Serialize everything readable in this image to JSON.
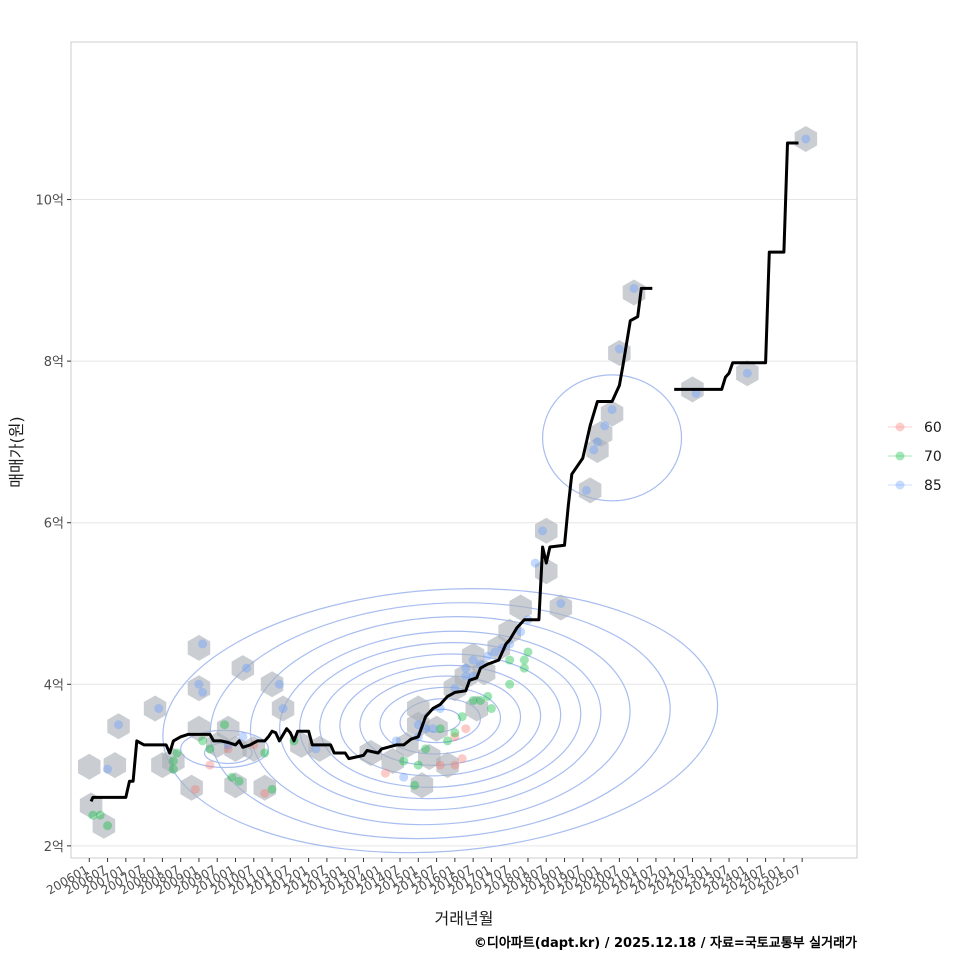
{
  "chart_data": {
    "type": "line",
    "xlabel": "거래년월",
    "ylabel": "매매가(원)",
    "caption": "©디아파트(dapt.kr) / 2025.12.18 / 자료=국토교통부 실거래가",
    "x_range": [
      2005.5,
      2027.0
    ],
    "ylim": [
      1.85,
      11.95
    ],
    "y_ticks": [
      {
        "value": 2,
        "label": "2억"
      },
      {
        "value": 4,
        "label": "4억"
      },
      {
        "value": 6,
        "label": "6억"
      },
      {
        "value": 8,
        "label": "8억"
      },
      {
        "value": 10,
        "label": "10억"
      }
    ],
    "x_ticks": [
      {
        "value": 2006.0,
        "label": "200601"
      },
      {
        "value": 2006.5,
        "label": "200607"
      },
      {
        "value": 2007.0,
        "label": "200701"
      },
      {
        "value": 2007.5,
        "label": "200707"
      },
      {
        "value": 2008.0,
        "label": "200801"
      },
      {
        "value": 2008.5,
        "label": "200807"
      },
      {
        "value": 2009.0,
        "label": "200901"
      },
      {
        "value": 2009.5,
        "label": "200907"
      },
      {
        "value": 2010.0,
        "label": "201001"
      },
      {
        "value": 2010.5,
        "label": "201007"
      },
      {
        "value": 2011.0,
        "label": "201101"
      },
      {
        "value": 2011.5,
        "label": "201107"
      },
      {
        "value": 2012.0,
        "label": "201201"
      },
      {
        "value": 2012.5,
        "label": "201207"
      },
      {
        "value": 2013.0,
        "label": "201301"
      },
      {
        "value": 2013.5,
        "label": "201307"
      },
      {
        "value": 2014.0,
        "label": "201401"
      },
      {
        "value": 2014.5,
        "label": "201407"
      },
      {
        "value": 2015.0,
        "label": "201501"
      },
      {
        "value": 2015.5,
        "label": "201507"
      },
      {
        "value": 2016.0,
        "label": "201601"
      },
      {
        "value": 2016.5,
        "label": "201607"
      },
      {
        "value": 2017.0,
        "label": "201701"
      },
      {
        "value": 2017.5,
        "label": "201707"
      },
      {
        "value": 2018.0,
        "label": "201801"
      },
      {
        "value": 2018.5,
        "label": "201807"
      },
      {
        "value": 2019.0,
        "label": "201901"
      },
      {
        "value": 2019.5,
        "label": "201907"
      },
      {
        "value": 2020.0,
        "label": "202001"
      },
      {
        "value": 2020.5,
        "label": "202007"
      },
      {
        "value": 2021.0,
        "label": "202101"
      },
      {
        "value": 2021.5,
        "label": "202107"
      },
      {
        "value": 2022.0,
        "label": "202201"
      },
      {
        "value": 2022.5,
        "label": "202207"
      },
      {
        "value": 2023.0,
        "label": "202301"
      },
      {
        "value": 2023.5,
        "label": "202307"
      },
      {
        "value": 2024.0,
        "label": "202401"
      },
      {
        "value": 2024.5,
        "label": "202407"
      },
      {
        "value": 2025.0,
        "label": "202501"
      },
      {
        "value": 2025.5,
        "label": "202507"
      }
    ],
    "legend": {
      "position": "right",
      "entries": [
        {
          "label": "60",
          "color": "#f8766d"
        },
        {
          "label": "70",
          "color": "#00ba38"
        },
        {
          "label": "85",
          "color": "#619cff"
        }
      ]
    },
    "colors": {
      "line": "#000000",
      "hex": "#a9b0b8",
      "contour": "#a8bdf0",
      "grid": "#e6e6e6",
      "border": "#cccccc"
    },
    "series": [
      {
        "name": "median price",
        "segments": [
          [
            [
              2006.05,
              2.55
            ],
            [
              2006.1,
              2.6
            ],
            [
              2006.4,
              2.6
            ],
            [
              2007.0,
              2.6
            ],
            [
              2007.1,
              2.8
            ],
            [
              2007.2,
              2.8
            ],
            [
              2007.3,
              3.3
            ],
            [
              2007.5,
              3.25
            ],
            [
              2008.1,
              3.25
            ],
            [
              2008.2,
              3.15
            ],
            [
              2008.3,
              3.3
            ],
            [
              2008.5,
              3.35
            ],
            [
              2008.7,
              3.38
            ],
            [
              2009.3,
              3.38
            ],
            [
              2009.4,
              3.3
            ],
            [
              2009.6,
              3.3
            ],
            [
              2009.8,
              3.28
            ],
            [
              2010.0,
              3.25
            ],
            [
              2010.1,
              3.3
            ],
            [
              2010.2,
              3.22
            ],
            [
              2010.4,
              3.25
            ],
            [
              2010.6,
              3.3
            ],
            [
              2010.8,
              3.3
            ],
            [
              2010.9,
              3.35
            ],
            [
              2011.0,
              3.42
            ],
            [
              2011.1,
              3.4
            ],
            [
              2011.2,
              3.3
            ],
            [
              2011.4,
              3.45
            ],
            [
              2011.5,
              3.4
            ],
            [
              2011.6,
              3.3
            ],
            [
              2011.7,
              3.42
            ],
            [
              2012.0,
              3.42
            ],
            [
              2012.1,
              3.25
            ],
            [
              2012.6,
              3.25
            ],
            [
              2012.7,
              3.15
            ],
            [
              2013.0,
              3.15
            ],
            [
              2013.1,
              3.08
            ],
            [
              2013.5,
              3.12
            ],
            [
              2013.6,
              3.18
            ],
            [
              2013.9,
              3.15
            ],
            [
              2014.0,
              3.2
            ],
            [
              2014.4,
              3.25
            ],
            [
              2014.6,
              3.25
            ],
            [
              2014.8,
              3.32
            ],
            [
              2015.0,
              3.35
            ],
            [
              2015.2,
              3.6
            ],
            [
              2015.4,
              3.7
            ],
            [
              2015.6,
              3.75
            ],
            [
              2015.8,
              3.85
            ],
            [
              2016.0,
              3.9
            ],
            [
              2016.3,
              3.92
            ],
            [
              2016.4,
              4.05
            ],
            [
              2016.6,
              4.08
            ],
            [
              2016.7,
              4.2
            ],
            [
              2016.9,
              4.25
            ],
            [
              2017.2,
              4.3
            ],
            [
              2017.4,
              4.5
            ],
            [
              2017.5,
              4.55
            ],
            [
              2017.7,
              4.7
            ],
            [
              2017.9,
              4.8
            ],
            [
              2018.3,
              4.8
            ],
            [
              2018.4,
              5.7
            ],
            [
              2018.5,
              5.5
            ],
            [
              2018.6,
              5.7
            ],
            [
              2019.0,
              5.72
            ],
            [
              2019.1,
              6.2
            ],
            [
              2019.2,
              6.6
            ],
            [
              2019.5,
              6.8
            ],
            [
              2019.7,
              7.2
            ],
            [
              2019.9,
              7.5
            ],
            [
              2020.3,
              7.5
            ],
            [
              2020.5,
              7.7
            ],
            [
              2020.6,
              7.95
            ],
            [
              2020.8,
              8.5
            ],
            [
              2021.0,
              8.55
            ],
            [
              2021.1,
              8.9
            ],
            [
              2021.4,
              8.9
            ]
          ],
          [
            [
              2022.0,
              7.65
            ],
            [
              2022.8,
              7.65
            ],
            [
              2023.3,
              7.65
            ],
            [
              2023.4,
              7.8
            ],
            [
              2023.5,
              7.85
            ],
            [
              2023.6,
              7.98
            ],
            [
              2024.5,
              7.98
            ],
            [
              2024.6,
              9.35
            ],
            [
              2025.0,
              9.35
            ],
            [
              2025.1,
              10.7
            ],
            [
              2025.4,
              10.7
            ]
          ]
        ]
      }
    ],
    "hexbin_centers": [
      [
        2006.05,
        2.5
      ],
      [
        2006.4,
        2.25
      ],
      [
        2006.0,
        2.98
      ],
      [
        2006.7,
        3.0
      ],
      [
        2006.8,
        3.48
      ],
      [
        2007.8,
        3.7
      ],
      [
        2008.0,
        3.0
      ],
      [
        2008.3,
        3.05
      ],
      [
        2008.8,
        2.72
      ],
      [
        2009.0,
        3.45
      ],
      [
        2009.0,
        3.95
      ],
      [
        2009.0,
        4.45
      ],
      [
        2009.5,
        3.25
      ],
      [
        2009.8,
        3.45
      ],
      [
        2010.0,
        2.75
      ],
      [
        2010.0,
        3.2
      ],
      [
        2010.2,
        4.2
      ],
      [
        2010.5,
        3.2
      ],
      [
        2010.8,
        2.72
      ],
      [
        2011.0,
        4.0
      ],
      [
        2011.3,
        3.7
      ],
      [
        2011.8,
        3.25
      ],
      [
        2012.3,
        3.2
      ],
      [
        2013.7,
        3.15
      ],
      [
        2014.3,
        3.05
      ],
      [
        2014.7,
        3.25
      ],
      [
        2015.0,
        3.5
      ],
      [
        2015.0,
        3.7
      ],
      [
        2015.1,
        2.75
      ],
      [
        2015.3,
        3.1
      ],
      [
        2015.5,
        3.45
      ],
      [
        2015.8,
        3.0
      ],
      [
        2016.0,
        3.95
      ],
      [
        2016.3,
        4.1
      ],
      [
        2016.5,
        4.35
      ],
      [
        2016.6,
        3.7
      ],
      [
        2016.8,
        4.15
      ],
      [
        2017.2,
        4.45
      ],
      [
        2017.5,
        4.65
      ],
      [
        2017.8,
        4.95
      ],
      [
        2018.5,
        5.4
      ],
      [
        2018.5,
        5.9
      ],
      [
        2018.9,
        4.95
      ],
      [
        2019.7,
        6.4
      ],
      [
        2019.9,
        6.9
      ],
      [
        2020.0,
        7.1
      ],
      [
        2020.3,
        7.35
      ],
      [
        2020.5,
        8.1
      ],
      [
        2020.9,
        8.85
      ],
      [
        2022.5,
        7.65
      ],
      [
        2024.0,
        7.85
      ],
      [
        2025.6,
        10.75
      ]
    ],
    "points": {
      "60": [
        [
          2008.9,
          2.7
        ],
        [
          2009.3,
          3.0
        ],
        [
          2009.8,
          3.2
        ],
        [
          2010.8,
          2.65
        ],
        [
          2014.1,
          2.9
        ],
        [
          2015.6,
          3.0
        ],
        [
          2016.0,
          3.0
        ],
        [
          2016.0,
          3.35
        ],
        [
          2016.3,
          3.45
        ],
        [
          2016.2,
          3.08
        ],
        [
          2010.5,
          3.25
        ]
      ],
      "70": [
        [
          2006.1,
          2.38
        ],
        [
          2006.3,
          2.38
        ],
        [
          2006.5,
          2.25
        ],
        [
          2008.3,
          3.05
        ],
        [
          2008.4,
          3.15
        ],
        [
          2009.1,
          3.3
        ],
        [
          2009.3,
          3.2
        ],
        [
          2009.7,
          3.5
        ],
        [
          2009.9,
          2.85
        ],
        [
          2010.1,
          2.8
        ],
        [
          2010.8,
          3.15
        ],
        [
          2011.0,
          2.7
        ],
        [
          2011.6,
          3.3
        ],
        [
          2014.6,
          3.05
        ],
        [
          2014.9,
          2.75
        ],
        [
          2015.0,
          3.0
        ],
        [
          2015.2,
          3.2
        ],
        [
          2015.6,
          3.45
        ],
        [
          2015.8,
          3.3
        ],
        [
          2016.0,
          3.4
        ],
        [
          2016.2,
          3.6
        ],
        [
          2016.5,
          3.8
        ],
        [
          2016.7,
          3.8
        ],
        [
          2016.9,
          3.85
        ],
        [
          2017.0,
          3.7
        ],
        [
          2017.5,
          4.3
        ],
        [
          2017.9,
          4.2
        ],
        [
          2017.9,
          4.3
        ],
        [
          2018.0,
          4.4
        ],
        [
          2017.5,
          4.0
        ],
        [
          2008.3,
          2.95
        ]
      ],
      "85": [
        [
          2006.5,
          2.95
        ],
        [
          2006.8,
          3.5
        ],
        [
          2007.9,
          3.7
        ],
        [
          2009.0,
          4.0
        ],
        [
          2009.1,
          4.5
        ],
        [
          2010.3,
          4.2
        ],
        [
          2011.2,
          4.0
        ],
        [
          2011.3,
          3.7
        ],
        [
          2012.2,
          3.2
        ],
        [
          2014.4,
          3.3
        ],
        [
          2014.6,
          2.85
        ],
        [
          2015.0,
          3.5
        ],
        [
          2015.0,
          3.35
        ],
        [
          2015.2,
          3.45
        ],
        [
          2015.4,
          3.45
        ],
        [
          2015.6,
          3.7
        ],
        [
          2016.0,
          3.95
        ],
        [
          2016.3,
          4.1
        ],
        [
          2016.3,
          4.2
        ],
        [
          2016.5,
          4.1
        ],
        [
          2016.5,
          4.3
        ],
        [
          2016.7,
          4.25
        ],
        [
          2016.9,
          4.35
        ],
        [
          2017.1,
          4.4
        ],
        [
          2017.3,
          4.45
        ],
        [
          2017.5,
          4.5
        ],
        [
          2017.8,
          4.65
        ],
        [
          2018.0,
          4.8
        ],
        [
          2018.2,
          5.5
        ],
        [
          2018.4,
          5.9
        ],
        [
          2018.9,
          5.0
        ],
        [
          2019.6,
          6.4
        ],
        [
          2019.8,
          6.9
        ],
        [
          2019.9,
          7.0
        ],
        [
          2020.1,
          7.2
        ],
        [
          2020.3,
          7.4
        ],
        [
          2020.5,
          8.15
        ],
        [
          2020.9,
          8.9
        ],
        [
          2022.6,
          7.6
        ],
        [
          2024.0,
          7.85
        ],
        [
          2025.6,
          10.75
        ],
        [
          2009.1,
          3.9
        ],
        [
          2010.2,
          3.35
        ],
        [
          2009.8,
          3.25
        ]
      ]
    },
    "density_contours": {
      "main": {
        "center": [
          2015.6,
          3.55
        ],
        "rx": [
          0.55,
          1.1,
          1.65,
          2.2,
          2.75,
          3.3,
          3.85,
          4.4,
          5.2,
          6.3,
          7.6
        ],
        "ry": [
          0.14,
          0.27,
          0.41,
          0.55,
          0.68,
          0.82,
          0.96,
          1.1,
          1.28,
          1.45,
          1.62
        ],
        "rotation_deg": -4
      },
      "secondary": [
        {
          "center": [
            2009.7,
            3.2
          ],
          "rx": 1.2,
          "ry": 0.23
        },
        {
          "center": [
            2009.8,
            3.15
          ],
          "rx": 0.65,
          "ry": 0.13
        },
        {
          "center": [
            2020.3,
            7.05
          ],
          "rx": 1.9,
          "ry": 0.78
        }
      ]
    }
  }
}
